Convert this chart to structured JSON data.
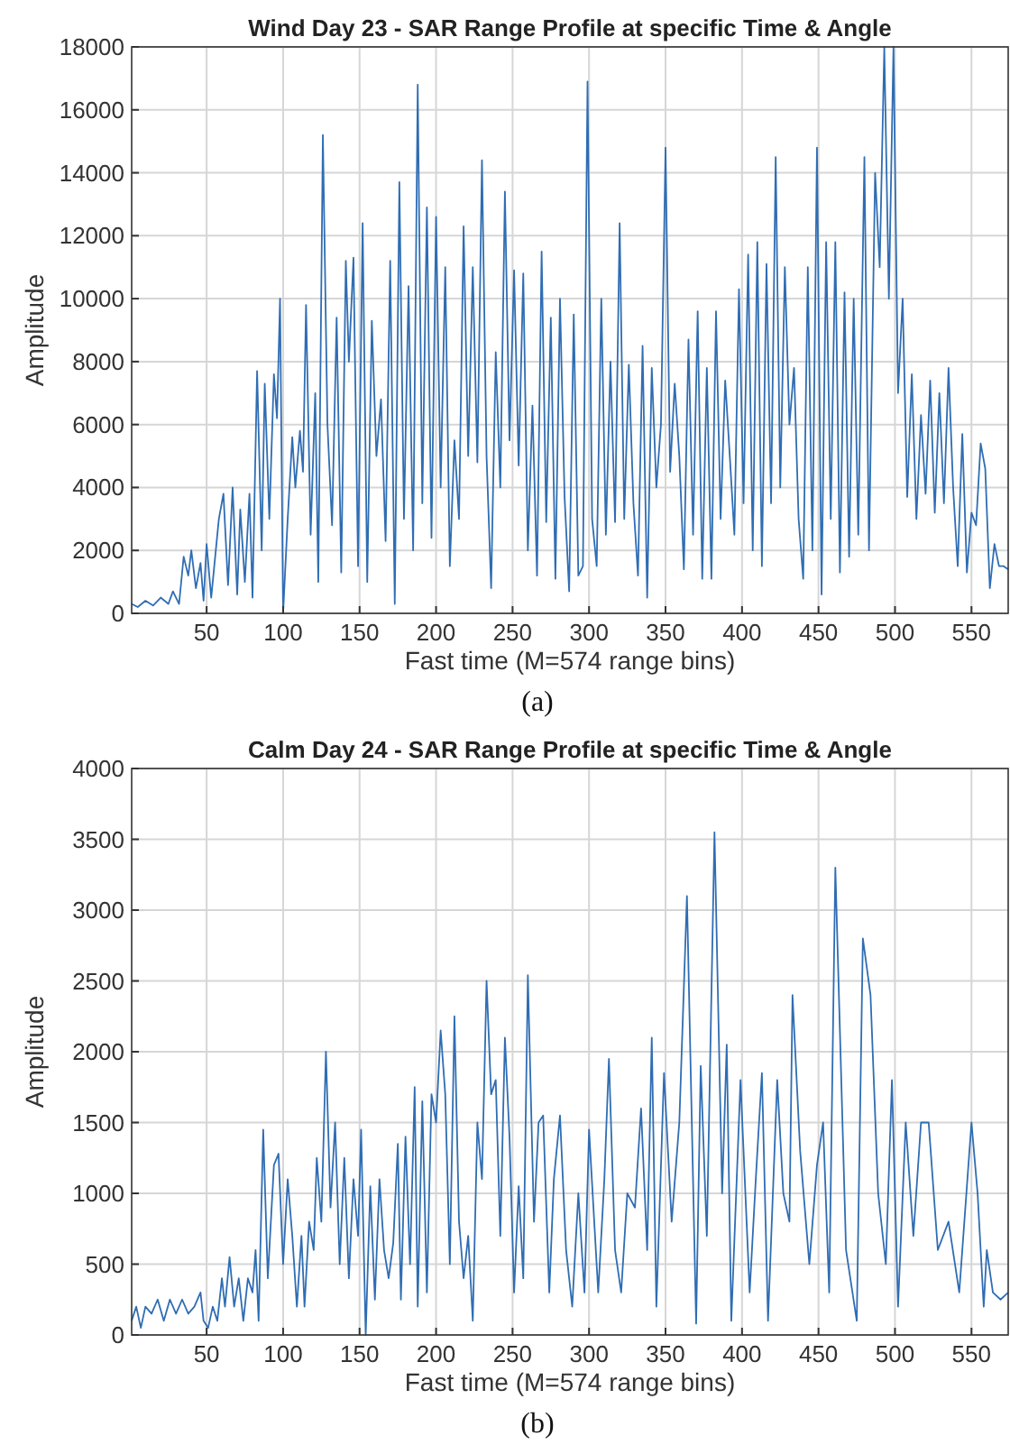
{
  "chart_data": [
    {
      "type": "line",
      "title": "Wind Day 23 - SAR Range Profile at specific Time & Angle",
      "xlabel": "Fast time (M=574 range bins)",
      "ylabel": "Amplitude",
      "xlim": [
        1,
        574
      ],
      "xticks": [
        50,
        100,
        150,
        200,
        250,
        300,
        350,
        400,
        450,
        500,
        550
      ],
      "ylim": [
        0,
        18000
      ],
      "yticks": [
        0,
        2000,
        4000,
        6000,
        8000,
        10000,
        12000,
        14000,
        16000,
        18000
      ],
      "grid": true,
      "annotations": [
        "(a)"
      ],
      "series": [
        {
          "color": "#2f6db3",
          "x": [
            1,
            5,
            10,
            15,
            20,
            25,
            28,
            32,
            35,
            38,
            40,
            43,
            46,
            48,
            50,
            53,
            55,
            58,
            61,
            64,
            67,
            70,
            72,
            75,
            78,
            80,
            83,
            86,
            88,
            91,
            94,
            96,
            98,
            100,
            103,
            106,
            108,
            111,
            113,
            115,
            118,
            121,
            123,
            126,
            129,
            132,
            135,
            138,
            141,
            143,
            146,
            149,
            152,
            155,
            158,
            161,
            164,
            167,
            170,
            173,
            176,
            179,
            182,
            185,
            188,
            191,
            194,
            197,
            200,
            203,
            206,
            209,
            212,
            215,
            218,
            221,
            224,
            227,
            230,
            233,
            236,
            239,
            242,
            245,
            248,
            251,
            254,
            257,
            260,
            263,
            266,
            269,
            272,
            275,
            278,
            281,
            284,
            287,
            290,
            293,
            296,
            299,
            302,
            305,
            308,
            311,
            314,
            317,
            320,
            323,
            326,
            329,
            332,
            335,
            338,
            341,
            344,
            347,
            350,
            353,
            356,
            359,
            362,
            365,
            368,
            371,
            374,
            377,
            380,
            383,
            386,
            389,
            392,
            395,
            398,
            401,
            404,
            407,
            410,
            413,
            416,
            419,
            422,
            425,
            428,
            431,
            434,
            437,
            440,
            443,
            446,
            449,
            452,
            455,
            458,
            461,
            464,
            467,
            470,
            473,
            476,
            480,
            483,
            487,
            490,
            493,
            496,
            499,
            502,
            505,
            508,
            511,
            514,
            517,
            520,
            523,
            526,
            529,
            532,
            535,
            538,
            541,
            544,
            547,
            550,
            553,
            556,
            559,
            562,
            565,
            568,
            571,
            574
          ],
          "values": [
            300,
            200,
            400,
            250,
            500,
            300,
            700,
            300,
            1800,
            1200,
            2000,
            800,
            1600,
            400,
            2200,
            500,
            1500,
            3000,
            3800,
            900,
            4000,
            600,
            3300,
            1000,
            3800,
            500,
            7700,
            2000,
            7300,
            3000,
            7600,
            6200,
            10000,
            0,
            3000,
            5600,
            4000,
            5800,
            4500,
            9800,
            2500,
            7000,
            1000,
            15200,
            6000,
            2800,
            9400,
            1300,
            11200,
            8000,
            11300,
            1500,
            12400,
            1000,
            9300,
            5000,
            6800,
            2300,
            11200,
            300,
            13700,
            3000,
            10400,
            2000,
            16800,
            3500,
            12900,
            2400,
            12600,
            4000,
            11000,
            1500,
            5500,
            3000,
            12300,
            5000,
            11000,
            4800,
            14400,
            5000,
            800,
            8300,
            4000,
            13400,
            5500,
            10900,
            4700,
            10800,
            2000,
            6600,
            1200,
            11500,
            2900,
            9400,
            1100,
            10000,
            3700,
            700,
            9500,
            1200,
            1500,
            16900,
            3000,
            1500,
            10000,
            2500,
            8000,
            2900,
            12400,
            3000,
            7900,
            3500,
            1200,
            8500,
            500,
            7800,
            4000,
            6000,
            14800,
            4500,
            7300,
            5000,
            1400,
            8700,
            2500,
            9600,
            1100,
            7800,
            1100,
            9600,
            3000,
            7400,
            5000,
            2500,
            10300,
            3500,
            11400,
            2000,
            11800,
            1500,
            11100,
            3500,
            14500,
            4000,
            11000,
            6000,
            7800,
            3000,
            1100,
            11000,
            2000,
            14800,
            600,
            11800,
            3000,
            11800,
            1300,
            10200,
            1800,
            10000,
            2500,
            14500,
            2000,
            14000,
            11000,
            18000,
            10000,
            18000,
            7000,
            10000,
            3700,
            7600,
            3000,
            6300,
            3800,
            7400,
            3200,
            7000,
            3500,
            7800,
            4000,
            1500,
            5700,
            1300,
            3200,
            2800,
            5400,
            4600,
            800,
            2200,
            1500,
            1500,
            1400
          ]
        }
      ]
    },
    {
      "type": "line",
      "title": "Calm Day 24 - SAR Range Profile at specific Time & Angle",
      "xlabel": "Fast time (M=574 range bins)",
      "ylabel": "Amplitude",
      "xlim": [
        1,
        574
      ],
      "xticks": [
        50,
        100,
        150,
        200,
        250,
        300,
        350,
        400,
        450,
        500,
        550
      ],
      "ylim": [
        0,
        4000
      ],
      "yticks": [
        0,
        500,
        1000,
        1500,
        2000,
        2500,
        3000,
        3500,
        4000
      ],
      "grid": true,
      "annotations": [
        "(b)"
      ],
      "series": [
        {
          "color": "#2f6db3",
          "x": [
            1,
            4,
            7,
            10,
            14,
            18,
            22,
            26,
            30,
            34,
            38,
            42,
            46,
            48,
            51,
            54,
            57,
            60,
            62,
            65,
            68,
            71,
            74,
            77,
            80,
            82,
            84,
            87,
            90,
            94,
            97,
            100,
            103,
            106,
            109,
            112,
            114,
            117,
            120,
            122,
            125,
            128,
            131,
            134,
            137,
            140,
            143,
            146,
            149,
            151,
            154,
            157,
            160,
            163,
            166,
            169,
            172,
            175,
            177,
            180,
            183,
            186,
            188,
            191,
            194,
            197,
            200,
            203,
            206,
            209,
            212,
            215,
            218,
            221,
            224,
            227,
            230,
            233,
            236,
            239,
            242,
            245,
            248,
            251,
            254,
            257,
            260,
            264,
            267,
            270,
            274,
            277,
            281,
            285,
            289,
            293,
            297,
            300,
            306,
            310,
            313,
            317,
            321,
            325,
            330,
            334,
            338,
            341,
            344,
            349,
            354,
            359,
            364,
            370,
            373,
            377,
            382,
            387,
            390,
            393,
            399,
            405,
            409,
            413,
            417,
            423,
            427,
            431,
            433,
            438,
            444,
            449,
            453,
            457,
            461,
            468,
            475,
            479,
            484,
            489,
            494,
            498,
            502,
            507,
            512,
            517,
            522,
            528,
            535,
            542,
            546,
            550,
            554,
            558,
            560,
            564,
            569,
            574
          ],
          "values": [
            100,
            200,
            50,
            200,
            150,
            250,
            100,
            250,
            150,
            250,
            150,
            200,
            300,
            100,
            50,
            200,
            100,
            400,
            200,
            550,
            200,
            400,
            100,
            400,
            300,
            600,
            100,
            1450,
            400,
            1200,
            1280,
            500,
            1100,
            700,
            200,
            700,
            200,
            800,
            600,
            1250,
            800,
            2000,
            900,
            1500,
            500,
            1250,
            400,
            1100,
            700,
            1450,
            0,
            1050,
            250,
            1100,
            600,
            400,
            650,
            1350,
            250,
            1400,
            500,
            1750,
            200,
            1650,
            300,
            1700,
            1500,
            2150,
            1700,
            500,
            2250,
            800,
            400,
            700,
            100,
            1500,
            1100,
            2500,
            1700,
            1800,
            700,
            2100,
            1400,
            300,
            1050,
            400,
            2540,
            800,
            1500,
            1550,
            300,
            1100,
            1550,
            600,
            200,
            1000,
            300,
            1450,
            300,
            1100,
            1950,
            600,
            300,
            1000,
            900,
            1600,
            600,
            2100,
            200,
            1850,
            800,
            1500,
            3100,
            80,
            1900,
            700,
            3550,
            1000,
            2050,
            100,
            1800,
            300,
            1100,
            1850,
            100,
            1800,
            1000,
            800,
            2400,
            1300,
            500,
            1200,
            1500,
            300,
            3300,
            600,
            100,
            2800,
            2400,
            1000,
            500,
            1800,
            200,
            1500,
            700,
            1500,
            1500,
            600,
            800,
            300,
            900,
            1500,
            1000,
            200,
            600,
            300,
            250,
            300
          ]
        }
      ]
    }
  ]
}
